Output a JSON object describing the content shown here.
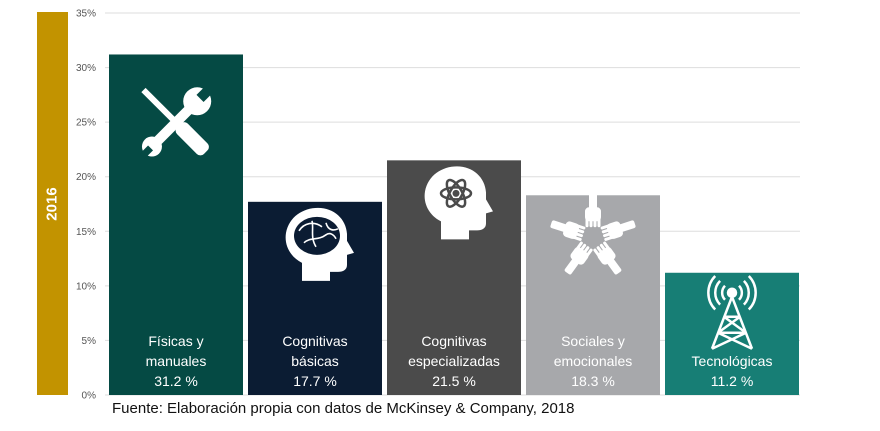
{
  "year_label": "2016",
  "source": "Fuente: Elaboración propia con datos de McKinsey & Company, 2018",
  "colors": {
    "year_bar": "#c29300",
    "fisicas": "#054a44",
    "cognitivas_basicas": "#0b1c33",
    "cognitivas_especializadas": "#4b4b4b",
    "sociales": "#a7a8ab",
    "tecnologicas": "#177e75"
  },
  "chart_data": {
    "type": "bar",
    "title": "",
    "xlabel": "",
    "ylabel": "",
    "ylim": [
      0,
      35
    ],
    "grid": true,
    "y_ticks": [
      "0%",
      "5%",
      "10%",
      "15%",
      "20%",
      "25%",
      "30%",
      "35%"
    ],
    "categories": [
      [
        "Físicas y",
        "manuales"
      ],
      [
        "Cognitivas",
        "básicas"
      ],
      [
        "Cognitivas",
        "especializadas"
      ],
      [
        "Sociales y",
        "emocionales"
      ],
      [
        "Tecnológicas"
      ]
    ],
    "values": [
      31.2,
      17.7,
      21.5,
      18.3,
      11.2
    ],
    "value_labels": [
      "31.2 %",
      "17.7 %",
      "21.5 %",
      "18.3 %",
      "11.2 %"
    ],
    "icons": [
      "tools-icon",
      "brain-head-icon",
      "atom-head-icon",
      "joined-hands-icon",
      "antenna-tower-icon"
    ],
    "bar_colors": [
      "#054a44",
      "#0b1c33",
      "#4b4b4b",
      "#a7a8ab",
      "#177e75"
    ]
  }
}
